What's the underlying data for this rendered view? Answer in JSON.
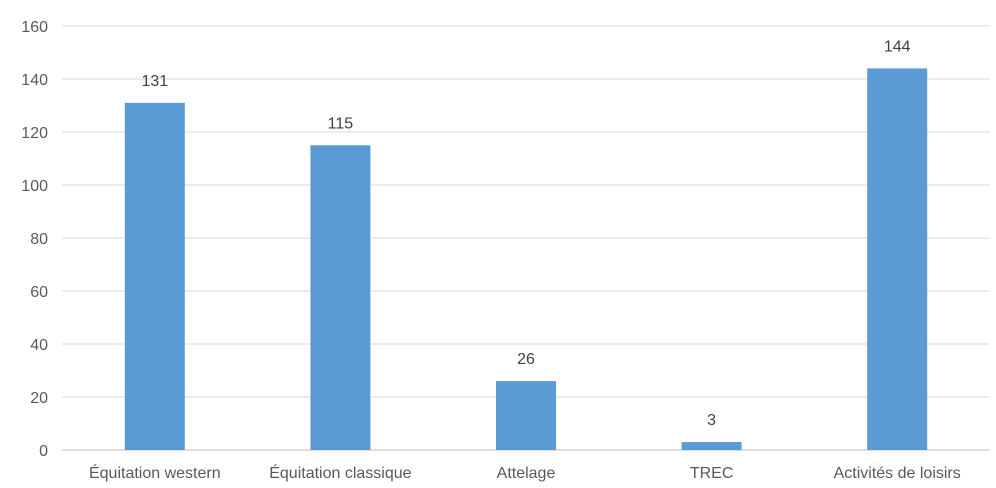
{
  "chart_data": {
    "type": "bar",
    "categories": [
      "Équitation western",
      "Équitation classique",
      "Attelage",
      "TREC",
      "Activités de loisirs"
    ],
    "values": [
      131,
      115,
      26,
      3,
      144
    ],
    "data_labels": [
      "131",
      "115",
      "26",
      "3",
      "144"
    ],
    "title": "",
    "xlabel": "",
    "ylabel": "",
    "ylim": [
      0,
      160
    ],
    "yticks": [
      0,
      20,
      40,
      60,
      80,
      100,
      120,
      140,
      160
    ],
    "ytick_labels": [
      "0",
      "20",
      "40",
      "60",
      "80",
      "100",
      "120",
      "140",
      "160"
    ],
    "grid": true,
    "legend": "none",
    "bar_color": "#5b9bd5",
    "grid_color": "#d9d9d9",
    "text_color": "#595959"
  }
}
